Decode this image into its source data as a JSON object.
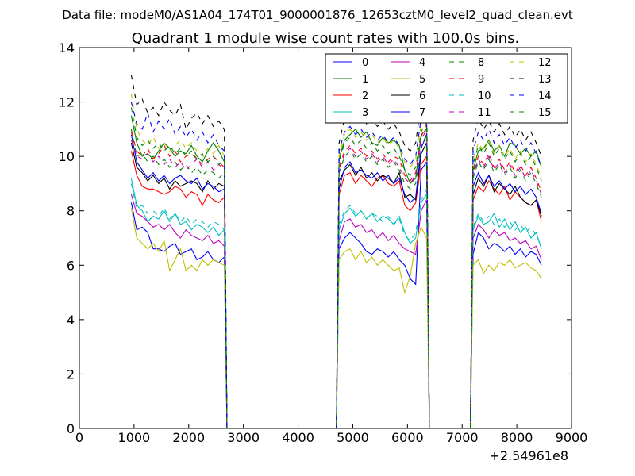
{
  "figure": {
    "suptitle": "Data file: modeM0/AS1A04_174T01_9000001876_12653cztM0_level2_quad_clean.evt"
  },
  "chart_data": {
    "type": "line",
    "title": "Quadrant 1 module wise count rates with 100.0s bins.",
    "xlabel": "",
    "ylabel": "",
    "x_offset_label": "+2.54961e8",
    "xlim": [
      0,
      9000
    ],
    "ylim": [
      0,
      14
    ],
    "xticks": [
      0,
      1000,
      2000,
      3000,
      4000,
      5000,
      6000,
      7000,
      8000,
      9000
    ],
    "yticks": [
      0,
      2,
      4,
      6,
      8,
      10,
      12,
      14
    ],
    "legend_position": "top-right",
    "legend_columns": 4,
    "segments": [
      [
        950,
        2650
      ],
      [
        4750,
        6350
      ],
      [
        7200,
        8450
      ]
    ],
    "gaps": [
      [
        2700,
        4700
      ],
      [
        6400,
        7150
      ]
    ],
    "series": [
      {
        "name": "0",
        "color": "#0000ff",
        "dash": "solid",
        "values": [
          [
            8.3,
            7.3,
            7.4,
            7.2,
            6.6,
            6.6,
            6.5,
            6.7,
            6.8,
            6.4,
            6.5,
            6.6,
            6.2,
            6.3,
            6.5,
            6.2,
            6.1,
            6.3
          ],
          [
            6.6,
            7.0,
            7.2,
            7.0,
            6.8,
            6.5,
            6.4,
            6.6,
            6.5,
            6.3,
            6.5,
            6.2,
            6.0,
            5.5,
            5.3,
            9.5,
            9.8
          ],
          [
            6.4,
            7.2,
            7.0,
            6.6,
            6.8,
            6.7,
            6.5,
            6.7,
            6.4,
            6.6,
            6.3,
            6.5,
            6.4,
            6.0
          ]
        ]
      },
      {
        "name": "1",
        "color": "#008000",
        "dash": "solid",
        "values": [
          [
            11.5,
            10.5,
            10.0,
            10.1,
            9.9,
            10.2,
            10.5,
            10.3,
            10.0,
            10.2,
            10.1,
            10.4,
            10.0,
            9.8,
            10.2,
            10.5,
            10.2,
            9.8
          ],
          [
            9.9,
            10.6,
            10.8,
            11.0,
            10.7,
            10.9,
            10.5,
            10.4,
            10.7,
            10.5,
            10.6,
            10.4,
            9.5,
            9.0,
            9.2,
            10.8,
            11.0
          ],
          [
            9.5,
            10.2,
            10.3,
            10.6,
            10.2,
            10.4,
            10.0,
            10.5,
            10.4,
            10.1,
            10.3,
            10.0,
            10.2,
            9.6
          ]
        ]
      },
      {
        "name": "2",
        "color": "#ff0000",
        "dash": "solid",
        "values": [
          [
            10.2,
            9.3,
            8.9,
            8.8,
            8.8,
            8.7,
            8.6,
            8.7,
            8.9,
            8.8,
            8.5,
            8.7,
            8.6,
            8.2,
            8.6,
            8.4,
            8.3,
            8.5
          ],
          [
            8.6,
            9.3,
            9.4,
            9.0,
            9.3,
            9.1,
            8.9,
            9.2,
            9.3,
            9.0,
            8.9,
            9.1,
            8.2,
            8.0,
            8.3,
            9.7,
            10.0
          ],
          [
            8.4,
            8.9,
            8.7,
            9.1,
            8.8,
            8.6,
            8.9,
            8.4,
            8.7,
            8.5,
            8.3,
            8.2,
            8.4,
            7.6
          ]
        ]
      },
      {
        "name": "3",
        "color": "#00bfbf",
        "dash": "solid",
        "values": [
          [
            9.2,
            8.2,
            8.0,
            7.6,
            7.8,
            7.7,
            8.0,
            7.6,
            7.9,
            7.5,
            7.6,
            7.3,
            7.5,
            7.4,
            7.2,
            7.4,
            7.1,
            7.3
          ],
          [
            7.3,
            7.9,
            8.1,
            7.8,
            8.0,
            7.7,
            7.9,
            7.6,
            7.8,
            7.7,
            7.5,
            7.8,
            7.2,
            6.8,
            7.0,
            8.3,
            8.6
          ],
          [
            7.3,
            7.8,
            7.5,
            7.6,
            7.9,
            7.4,
            7.7,
            7.3,
            7.6,
            7.2,
            7.4,
            7.0,
            7.2,
            6.6
          ]
        ]
      },
      {
        "name": "4",
        "color": "#bf00bf",
        "dash": "solid",
        "values": [
          [
            8.6,
            7.9,
            7.8,
            7.6,
            7.4,
            7.5,
            7.3,
            7.5,
            7.2,
            7.0,
            7.3,
            7.1,
            7.0,
            6.9,
            7.1,
            6.8,
            6.9,
            6.7
          ],
          [
            6.9,
            7.6,
            7.7,
            7.4,
            7.5,
            7.2,
            7.3,
            7.0,
            7.2,
            6.9,
            7.1,
            6.8,
            6.6,
            6.5,
            6.4,
            8.0,
            8.4
          ],
          [
            7.0,
            7.5,
            7.3,
            7.0,
            7.3,
            7.1,
            7.2,
            6.9,
            7.0,
            6.8,
            6.9,
            6.6,
            6.7,
            6.2
          ]
        ]
      },
      {
        "name": "5",
        "color": "#bfbf00",
        "dash": "solid",
        "values": [
          [
            8.1,
            7.0,
            6.8,
            6.6,
            6.8,
            6.5,
            6.9,
            5.8,
            6.2,
            6.6,
            5.8,
            6.0,
            5.8,
            6.2,
            6.0,
            6.2,
            6.1,
            6.0
          ],
          [
            6.2,
            6.5,
            6.6,
            6.2,
            6.5,
            6.1,
            6.3,
            6.0,
            6.2,
            6.0,
            5.8,
            5.9,
            5.0,
            5.6,
            6.8,
            7.4,
            7.0
          ],
          [
            6.0,
            6.2,
            5.7,
            6.0,
            5.8,
            6.1,
            6.0,
            6.2,
            5.9,
            6.0,
            6.1,
            5.9,
            5.8,
            5.5
          ]
        ]
      },
      {
        "name": "6",
        "color": "#000000",
        "dash": "solid",
        "values": [
          [
            10.5,
            9.6,
            9.4,
            9.1,
            9.3,
            9.0,
            9.2,
            8.8,
            9.1,
            8.9,
            9.0,
            9.1,
            9.0,
            8.7,
            9.1,
            8.8,
            9.0,
            8.9
          ],
          [
            9.1,
            9.5,
            9.7,
            9.3,
            9.6,
            9.2,
            9.4,
            9.1,
            9.3,
            9.2,
            9.0,
            9.4,
            8.5,
            8.6,
            8.4,
            10.1,
            10.5
          ],
          [
            8.6,
            9.2,
            8.9,
            9.3,
            8.7,
            9.0,
            8.8,
            8.6,
            8.9,
            8.5,
            8.3,
            8.2,
            8.4,
            7.8
          ]
        ]
      },
      {
        "name": "7",
        "color": "#0000ff",
        "dash": "solid",
        "values": [
          [
            10.8,
            9.8,
            9.5,
            9.2,
            9.4,
            9.1,
            9.3,
            9.0,
            9.2,
            9.3,
            9.1,
            9.0,
            9.2,
            8.8,
            9.0,
            8.9,
            8.7,
            8.8
          ],
          [
            8.8,
            9.6,
            9.8,
            9.4,
            9.5,
            9.3,
            9.2,
            9.4,
            9.1,
            9.3,
            9.0,
            9.2,
            8.6,
            8.3,
            8.5,
            10.3,
            10.8
          ],
          [
            8.9,
            9.4,
            9.0,
            9.3,
            8.9,
            9.1,
            8.8,
            9.0,
            8.7,
            8.9,
            8.6,
            8.8,
            8.5,
            7.9
          ]
        ]
      },
      {
        "name": "8",
        "color": "#008000",
        "dash": "dashed",
        "values": [
          [
            11.0,
            10.0,
            10.1,
            9.8,
            10.0,
            9.7,
            9.9,
            9.6,
            9.8,
            9.5,
            9.7,
            9.4,
            9.6,
            9.3,
            9.5,
            9.4,
            9.2,
            9.4
          ],
          [
            9.4,
            10.0,
            10.2,
            9.9,
            10.1,
            9.8,
            10.0,
            9.7,
            9.9,
            9.6,
            9.8,
            9.5,
            9.0,
            8.8,
            9.0,
            10.4,
            10.8
          ],
          [
            9.2,
            9.8,
            9.5,
            9.9,
            9.4,
            9.7,
            9.3,
            9.6,
            9.2,
            9.5,
            9.1,
            9.4,
            9.0,
            8.5
          ]
        ]
      },
      {
        "name": "9",
        "color": "#ff0000",
        "dash": "dashed",
        "values": [
          [
            10.9,
            10.2,
            10.0,
            10.3,
            9.9,
            10.1,
            10.4,
            10.0,
            10.2,
            9.8,
            10.0,
            10.1,
            9.9,
            9.7,
            9.9,
            10.0,
            9.8,
            9.6
          ],
          [
            9.6,
            10.2,
            10.4,
            10.1,
            10.3,
            10.0,
            10.2,
            9.9,
            10.1,
            9.8,
            10.0,
            9.9,
            9.3,
            9.1,
            9.4,
            10.7,
            11.2
          ],
          [
            9.4,
            10.0,
            9.7,
            10.1,
            9.6,
            9.9,
            9.5,
            9.8,
            9.4,
            9.7,
            9.3,
            9.6,
            9.2,
            8.7
          ]
        ]
      },
      {
        "name": "10",
        "color": "#00bfbf",
        "dash": "dashed",
        "values": [
          [
            9.0,
            8.1,
            8.2,
            7.9,
            8.0,
            7.8,
            8.1,
            7.7,
            7.9,
            7.6,
            7.8,
            7.5,
            7.7,
            7.6,
            7.4,
            7.6,
            7.5,
            7.3
          ],
          [
            7.5,
            8.0,
            8.2,
            7.9,
            8.0,
            7.7,
            7.9,
            7.8,
            7.6,
            7.8,
            7.5,
            7.7,
            7.1,
            6.9,
            7.2,
            8.4,
            8.8
          ],
          [
            7.4,
            7.9,
            7.6,
            7.8,
            7.5,
            7.7,
            7.4,
            7.6,
            7.3,
            7.5,
            7.2,
            7.4,
            7.1,
            6.7
          ]
        ]
      },
      {
        "name": "11",
        "color": "#bf00bf",
        "dash": "dashed",
        "values": [
          [
            10.6,
            10.0,
            9.9,
            10.1,
            9.8,
            10.0,
            9.7,
            9.9,
            9.6,
            9.8,
            9.5,
            9.7,
            9.9,
            9.6,
            9.8,
            9.5,
            9.7,
            9.5
          ],
          [
            9.5,
            10.1,
            10.3,
            10.0,
            10.2,
            9.9,
            10.1,
            9.8,
            10.0,
            9.7,
            9.9,
            9.6,
            9.2,
            9.0,
            9.3,
            10.6,
            11.0
          ],
          [
            9.3,
            9.9,
            9.6,
            10.0,
            9.5,
            9.8,
            9.4,
            9.7,
            9.3,
            9.6,
            9.2,
            9.5,
            9.1,
            8.6
          ]
        ]
      },
      {
        "name": "12",
        "color": "#bfbf00",
        "dash": "dashed",
        "values": [
          [
            12.3,
            11.0,
            10.6,
            10.4,
            10.7,
            10.3,
            10.5,
            10.2,
            10.4,
            10.6,
            10.3,
            10.5,
            10.2,
            10.0,
            10.3,
            10.1,
            10.4,
            10.0
          ],
          [
            10.0,
            10.8,
            11.0,
            10.7,
            10.9,
            10.6,
            10.8,
            10.5,
            10.7,
            10.4,
            10.6,
            10.3,
            9.8,
            9.6,
            9.9,
            11.2,
            11.6
          ],
          [
            9.9,
            10.5,
            10.2,
            10.6,
            10.1,
            10.4,
            10.0,
            10.3,
            9.9,
            10.2,
            9.8,
            10.1,
            9.7,
            9.2
          ]
        ]
      },
      {
        "name": "13",
        "color": "#000000",
        "dash": "dashed",
        "values": [
          [
            13.0,
            11.9,
            12.1,
            11.6,
            11.8,
            11.5,
            12.0,
            11.7,
            11.5,
            11.9,
            11.0,
            11.4,
            11.6,
            11.2,
            11.5,
            11.1,
            11.3,
            11.0
          ],
          [
            10.5,
            11.4,
            11.6,
            11.3,
            11.5,
            11.2,
            11.4,
            11.1,
            11.3,
            11.0,
            11.2,
            10.9,
            10.4,
            10.2,
            10.5,
            12.0,
            12.8
          ],
          [
            10.6,
            11.4,
            11.0,
            11.3,
            10.9,
            11.2,
            10.8,
            11.1,
            10.7,
            11.0,
            10.6,
            10.9,
            10.5,
            10.0
          ]
        ]
      },
      {
        "name": "14",
        "color": "#0000ff",
        "dash": "dashed",
        "values": [
          [
            12.0,
            11.2,
            11.0,
            11.6,
            10.9,
            11.3,
            11.0,
            11.4,
            10.8,
            11.1,
            10.7,
            11.0,
            10.6,
            10.9,
            10.5,
            10.8,
            10.4,
            10.2
          ],
          [
            10.2,
            10.9,
            11.1,
            10.8,
            11.0,
            10.7,
            10.9,
            10.6,
            10.8,
            10.5,
            10.7,
            10.4,
            9.9,
            9.7,
            10.0,
            11.4,
            11.8
          ],
          [
            10.2,
            10.9,
            10.6,
            11.0,
            10.5,
            10.8,
            10.4,
            10.7,
            10.3,
            10.6,
            10.2,
            10.5,
            10.1,
            9.6
          ]
        ]
      },
      {
        "name": "15",
        "color": "#008000",
        "dash": "dashed",
        "values": [
          [
            11.8,
            10.7,
            10.4,
            10.6,
            10.3,
            10.5,
            10.2,
            10.4,
            10.1,
            10.3,
            10.0,
            10.2,
            9.9,
            10.1,
            9.8,
            10.0,
            9.7,
            9.9
          ],
          [
            9.8,
            10.5,
            10.7,
            10.4,
            10.6,
            10.3,
            10.5,
            10.2,
            10.4,
            10.1,
            10.3,
            10.0,
            9.5,
            9.3,
            9.6,
            10.9,
            11.3
          ],
          [
            9.7,
            10.4,
            10.1,
            10.5,
            10.0,
            10.3,
            9.9,
            10.2,
            9.8,
            10.1,
            9.7,
            10.0,
            9.6,
            9.1
          ]
        ]
      }
    ]
  }
}
